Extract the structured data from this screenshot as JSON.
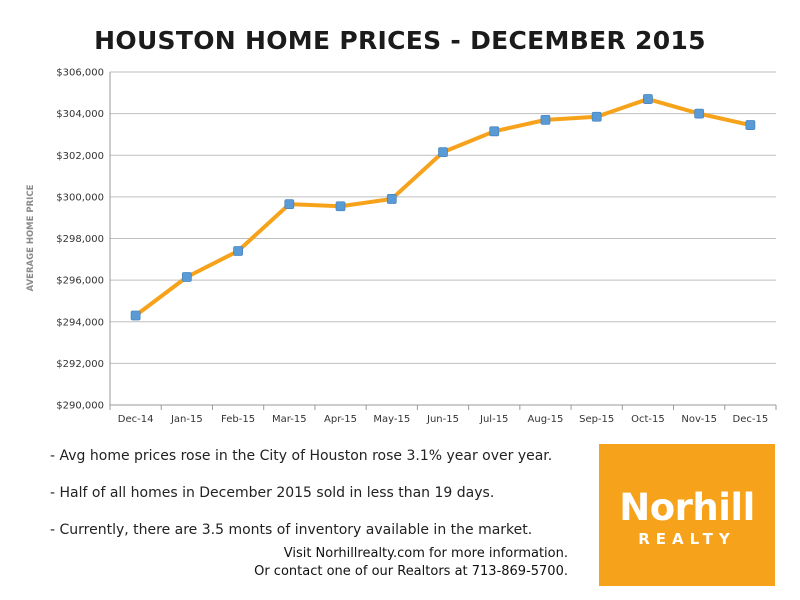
{
  "chart_data": {
    "type": "line",
    "title": "HOUSTON HOME PRICES - DECEMBER 2015",
    "ylabel": "AVERAGE HOME PRICE",
    "xlabel": "",
    "categories": [
      "Dec-14",
      "Jan-15",
      "Feb-15",
      "Mar-15",
      "Apr-15",
      "May-15",
      "Jun-15",
      "Jul-15",
      "Aug-15",
      "Sep-15",
      "Oct-15",
      "Nov-15",
      "Dec-15"
    ],
    "series": [
      {
        "values": [
          294300,
          296150,
          297400,
          299650,
          299550,
          299900,
          302150,
          303150,
          303700,
          303850,
          304700,
          304000,
          303450
        ]
      }
    ],
    "ylim": [
      290000,
      306000
    ],
    "yticks": [
      290000,
      292000,
      294000,
      296000,
      298000,
      300000,
      302000,
      304000,
      306000
    ],
    "ytick_labels": [
      "$290,000",
      "$292,000",
      "$294,000",
      "$296,000",
      "$298,000",
      "$300,000",
      "$302,000",
      "$304,000",
      "$306,000"
    ],
    "grid": true,
    "line_color": "#f7a21b",
    "marker_color": "#5b9bd5",
    "grid_color": "#bfbfbf"
  },
  "bullets": [
    "- Avg home prices rose in the City of Houston rose 3.1% year over year.",
    "- Half of all homes in December 2015 sold in less than 19 days.",
    "- Currently, there are 3.5 monts of inventory available in the market."
  ],
  "contact": {
    "line1": "Visit Norhillrealty.com for more information.",
    "line2": "Or contact one of our Realtors at 713-869-5700."
  },
  "logo": {
    "name": "Norhill",
    "sub": "REALTY",
    "color": "#f6a21a"
  }
}
